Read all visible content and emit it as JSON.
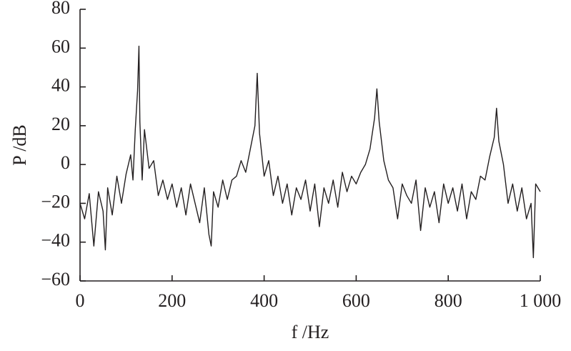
{
  "chart_data": {
    "type": "line",
    "xlabel": "f /Hz",
    "ylabel": "P /dB",
    "color": "#231f20",
    "x": [
      0,
      10,
      20,
      30,
      40,
      50,
      55,
      60,
      70,
      80,
      90,
      100,
      110,
      115,
      120,
      125,
      128,
      130,
      135,
      140,
      150,
      160,
      170,
      180,
      190,
      200,
      210,
      220,
      230,
      240,
      250,
      260,
      270,
      280,
      285,
      290,
      300,
      310,
      320,
      330,
      340,
      350,
      360,
      370,
      380,
      385,
      390,
      400,
      410,
      420,
      430,
      440,
      450,
      460,
      470,
      480,
      490,
      500,
      510,
      520,
      530,
      540,
      550,
      560,
      570,
      580,
      590,
      600,
      610,
      620,
      630,
      640,
      645,
      650,
      660,
      670,
      680,
      690,
      700,
      710,
      720,
      730,
      740,
      750,
      760,
      770,
      780,
      790,
      800,
      810,
      820,
      830,
      840,
      850,
      860,
      870,
      880,
      890,
      900,
      905,
      910,
      920,
      930,
      940,
      950,
      960,
      970,
      980,
      985,
      990,
      1000
    ],
    "values": [
      -20,
      -28,
      -15,
      -42,
      -14,
      -24,
      -44,
      -12,
      -26,
      -6,
      -20,
      -5,
      5,
      -8,
      18,
      38,
      61,
      22,
      -8,
      18,
      -2,
      2,
      -16,
      -8,
      -18,
      -10,
      -22,
      -12,
      -26,
      -10,
      -20,
      -30,
      -12,
      -36,
      -42,
      -14,
      -22,
      -8,
      -18,
      -8,
      -6,
      2,
      -4,
      8,
      20,
      47,
      16,
      -6,
      2,
      -16,
      -6,
      -20,
      -10,
      -26,
      -12,
      -18,
      -8,
      -24,
      -10,
      -32,
      -12,
      -20,
      -8,
      -22,
      -4,
      -14,
      -6,
      -10,
      -4,
      0,
      8,
      24,
      39,
      22,
      2,
      -8,
      -12,
      -28,
      -10,
      -16,
      -20,
      -8,
      -34,
      -12,
      -22,
      -14,
      -30,
      -10,
      -20,
      -12,
      -24,
      -10,
      -28,
      -14,
      -18,
      -6,
      -8,
      4,
      14,
      29,
      12,
      0,
      -20,
      -10,
      -24,
      -12,
      -28,
      -20,
      -48,
      -10,
      -14
    ],
    "xlim": [
      0,
      1000
    ],
    "xticks": [
      0,
      200,
      400,
      600,
      800,
      {
        "value": 1000,
        "label": "1 000"
      }
    ],
    "ylim": [
      -60,
      80
    ],
    "yticks": [
      {
        "value": -60,
        "label": "−60"
      },
      {
        "value": -40,
        "label": "−40"
      },
      {
        "value": -20,
        "label": "−20"
      },
      0,
      20,
      40,
      60,
      80
    ]
  }
}
